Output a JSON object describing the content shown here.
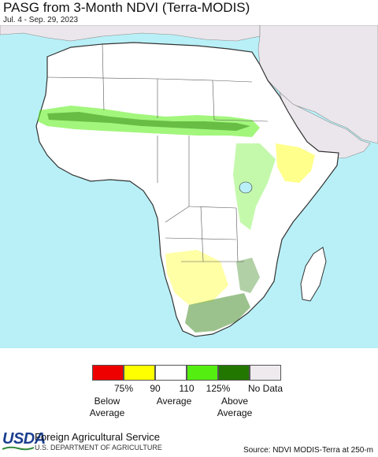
{
  "header": {
    "title": "PASG from 3-Month NDVI (Terra-MODIS)",
    "date_range": "Jul. 4 - Sep. 29, 2023"
  },
  "legend": {
    "ticks": [
      "75%",
      "90",
      "110",
      "125%",
      "No Data"
    ],
    "categories": [
      "Below\nAverage",
      "Average",
      "Above\nAverage"
    ],
    "colors": [
      "#ee0000",
      "#ffff00",
      "#ffffff",
      "#55ee11",
      "#227700",
      "#eeeaee"
    ]
  },
  "colors": {
    "ocean": "#b9f0f7",
    "land_other": "#ebe6ec",
    "africa_base": "#ffffff"
  },
  "footer": {
    "agency": "Foreign Agricultural Service",
    "department": "U.S. DEPARTMENT OF AGRICULTURE",
    "logo": "USDA",
    "source": "Source: NDVI MODIS-Terra at 250-m"
  }
}
